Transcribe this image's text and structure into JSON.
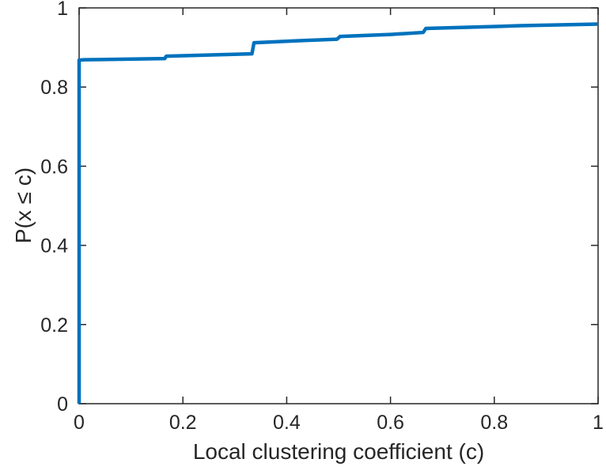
{
  "figure": {
    "background": "#ffffff"
  },
  "chart_data": {
    "type": "line",
    "subtype": "empirical-cdf-step",
    "title": "",
    "xlabel": "Local clustering coefficient (c)",
    "ylabel": "P(x ≤ c)",
    "xlim": [
      0,
      1
    ],
    "ylim": [
      0,
      1
    ],
    "xticks": [
      0,
      0.2,
      0.4,
      0.6,
      0.8,
      1
    ],
    "xtick_labels": [
      "0",
      "0.2",
      "0.4",
      "0.6",
      "0.8",
      "1"
    ],
    "yticks": [
      0,
      0.2,
      0.4,
      0.6,
      0.8,
      1
    ],
    "ytick_labels": [
      "0",
      "0.2",
      "0.4",
      "0.6",
      "0.8",
      "1"
    ],
    "grid": false,
    "legend": null,
    "line_color": "#0072bd",
    "line_width": 4.5,
    "axis_color": "#262626",
    "axis_line_width": 1.5,
    "tick_length": 9,
    "tick_font_size": 25,
    "points": [
      [
        0,
        0
      ],
      [
        0,
        0.868
      ],
      [
        0.01,
        0.869
      ],
      [
        0.165,
        0.872
      ],
      [
        0.168,
        0.878
      ],
      [
        0.25,
        0.881
      ],
      [
        0.333,
        0.884
      ],
      [
        0.337,
        0.912
      ],
      [
        0.42,
        0.917
      ],
      [
        0.497,
        0.921
      ],
      [
        0.503,
        0.928
      ],
      [
        0.6,
        0.933
      ],
      [
        0.663,
        0.938
      ],
      [
        0.668,
        0.948
      ],
      [
        0.75,
        0.951
      ],
      [
        0.85,
        0.955
      ],
      [
        1,
        0.959
      ]
    ]
  }
}
